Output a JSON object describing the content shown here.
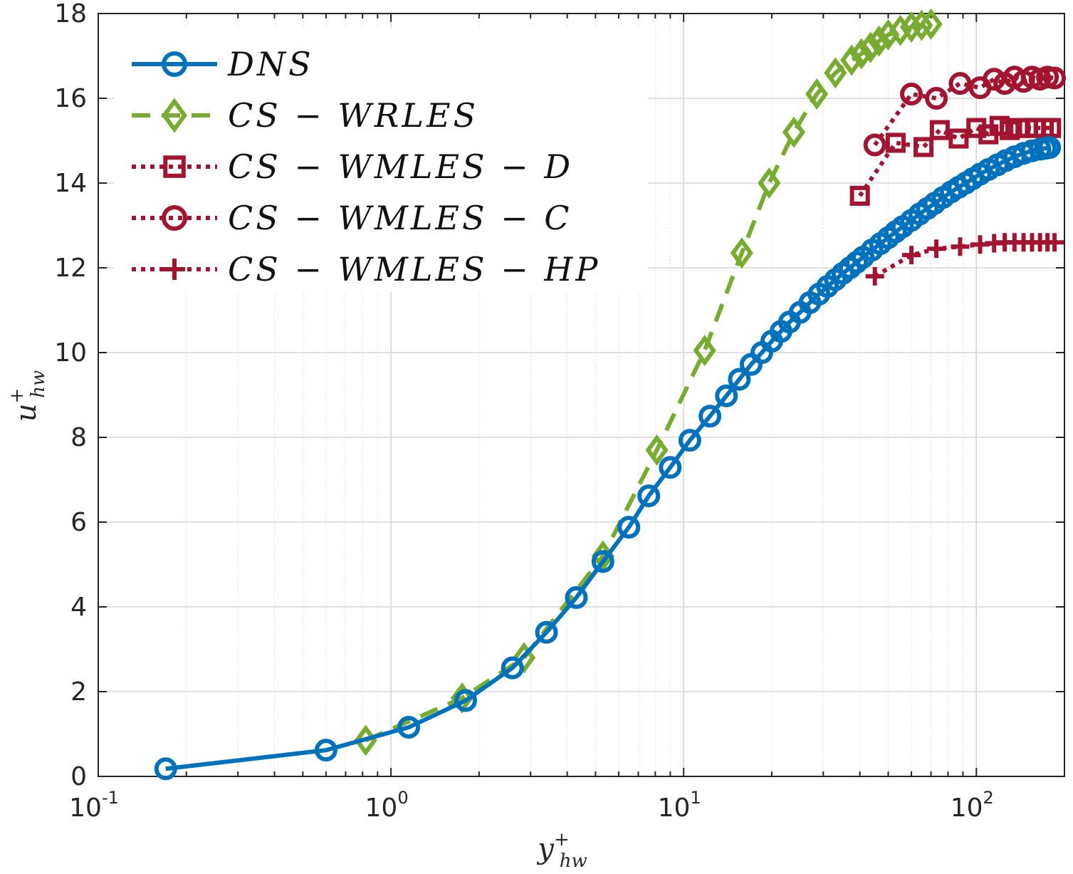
{
  "chart_data": {
    "type": "line",
    "xscale": "log",
    "xlim": [
      0.1,
      200
    ],
    "ylim": [
      0,
      18
    ],
    "xlabel": {
      "main": "y",
      "sup": "+",
      "sub": "hw"
    },
    "ylabel": {
      "main": "u",
      "sup": "+",
      "sub": "hw"
    },
    "grid": true,
    "legend_position": "top-left",
    "x_ticks": [
      {
        "value": 0.1,
        "base": "10",
        "exp": "-1"
      },
      {
        "value": 1,
        "base": "10",
        "exp": "0"
      },
      {
        "value": 10,
        "base": "10",
        "exp": "1"
      },
      {
        "value": 100,
        "base": "10",
        "exp": "2"
      }
    ],
    "y_ticks": [
      {
        "value": 0,
        "label": "0"
      },
      {
        "value": 2,
        "label": "2"
      },
      {
        "value": 4,
        "label": "4"
      },
      {
        "value": 6,
        "label": "6"
      },
      {
        "value": 8,
        "label": "8"
      },
      {
        "value": 10,
        "label": "10"
      },
      {
        "value": 12,
        "label": "12"
      },
      {
        "value": 14,
        "label": "14"
      },
      {
        "value": 16,
        "label": "16"
      },
      {
        "value": 18,
        "label": "18"
      }
    ],
    "series": [
      {
        "name": "DNS",
        "color": "#0072BD",
        "line": "solid",
        "marker": "circle",
        "x": [
          0.17,
          0.6,
          1.15,
          1.8,
          2.6,
          3.4,
          4.3,
          5.3,
          6.5,
          7.6,
          9.0,
          10.5,
          12.3,
          14.0,
          15.5,
          17.0,
          18.5,
          20.0,
          21.5,
          23.0,
          25.0,
          27.0,
          29.0,
          31.0,
          33.0,
          35.0,
          37.0,
          39.0,
          41.0,
          44.0,
          47.0,
          50.0,
          53.0,
          56.0,
          60.0,
          64.0,
          68.0,
          72.0,
          77.0,
          82.0,
          87.0,
          92.0,
          97.0,
          103.0,
          110.0,
          118.0,
          126.0,
          135.0,
          145.0,
          155.0,
          165.0,
          172.0,
          178.0
        ],
        "y": [
          0.18,
          0.62,
          1.16,
          1.79,
          2.56,
          3.4,
          4.22,
          5.07,
          5.88,
          6.62,
          7.29,
          7.93,
          8.5,
          8.98,
          9.37,
          9.72,
          10.0,
          10.27,
          10.5,
          10.72,
          10.95,
          11.18,
          11.38,
          11.56,
          11.72,
          11.87,
          12.0,
          12.13,
          12.25,
          12.42,
          12.57,
          12.71,
          12.85,
          12.97,
          13.12,
          13.27,
          13.4,
          13.52,
          13.66,
          13.79,
          13.9,
          14.0,
          14.1,
          14.21,
          14.32,
          14.43,
          14.53,
          14.62,
          14.7,
          14.76,
          14.8,
          14.82,
          14.84
        ]
      },
      {
        "name": "CS-WRLES",
        "color": "#77AC30",
        "line": "dashed",
        "marker": "diamond",
        "x": [
          0.82,
          1.75,
          2.85,
          5.3,
          8.1,
          11.8,
          15.8,
          19.6,
          23.8,
          28.5,
          33.0,
          37.5,
          40.5,
          43.5,
          46.5,
          50.0,
          55.0,
          60.0,
          65.0,
          70.0
        ],
        "y": [
          0.85,
          1.85,
          2.8,
          5.2,
          7.7,
          10.05,
          12.35,
          14.0,
          15.2,
          16.1,
          16.6,
          16.9,
          17.05,
          17.2,
          17.35,
          17.5,
          17.6,
          17.68,
          17.72,
          17.75
        ]
      },
      {
        "name": "CS-WMLES-D",
        "color": "#A2142F",
        "line": "dotted",
        "marker": "square",
        "x": [
          40.0,
          53.0,
          66.0,
          75.0,
          87.0,
          100.0,
          110.0,
          120.0,
          130.0,
          140.0,
          150.0,
          160.0,
          170.0,
          180.0
        ],
        "y": [
          13.7,
          14.95,
          14.85,
          15.25,
          15.05,
          15.3,
          15.15,
          15.35,
          15.25,
          15.3,
          15.3,
          15.3,
          15.3,
          15.3
        ]
      },
      {
        "name": "CS-WMLES-C",
        "color": "#A2142F",
        "line": "dotted",
        "marker": "circle",
        "x": [
          45.0,
          60.0,
          73.0,
          88.0,
          103.0,
          115.0,
          125.0,
          135.0,
          145.0,
          155.0,
          165.0,
          175.0,
          185.0
        ],
        "y": [
          14.9,
          16.1,
          16.0,
          16.35,
          16.25,
          16.45,
          16.35,
          16.5,
          16.4,
          16.5,
          16.45,
          16.5,
          16.48
        ]
      },
      {
        "name": "CS-WMLES-HP",
        "color": "#A2142F",
        "line": "dotted",
        "marker": "plus",
        "x": [
          45.0,
          60.0,
          73.0,
          88.0,
          103.0,
          115.0,
          125.0,
          135.0,
          145.0,
          155.0,
          165.0,
          175.0,
          185.0
        ],
        "y": [
          11.8,
          12.3,
          12.45,
          12.5,
          12.55,
          12.58,
          12.6,
          12.6,
          12.6,
          12.6,
          12.6,
          12.6,
          12.6
        ]
      }
    ],
    "legend": [
      {
        "label": "DNS",
        "color": "#0072BD",
        "line": "solid",
        "marker": "circle"
      },
      {
        "label": "CS − WRLES",
        "color": "#77AC30",
        "line": "dashed",
        "marker": "diamond"
      },
      {
        "label": "CS − WMLES − D",
        "color": "#A2142F",
        "line": "dotted",
        "marker": "square"
      },
      {
        "label": "CS − WMLES − C",
        "color": "#A2142F",
        "line": "dotted",
        "marker": "circle"
      },
      {
        "label": "CS − WMLES − HP",
        "color": "#A2142F",
        "line": "dotted",
        "marker": "plus"
      }
    ]
  }
}
